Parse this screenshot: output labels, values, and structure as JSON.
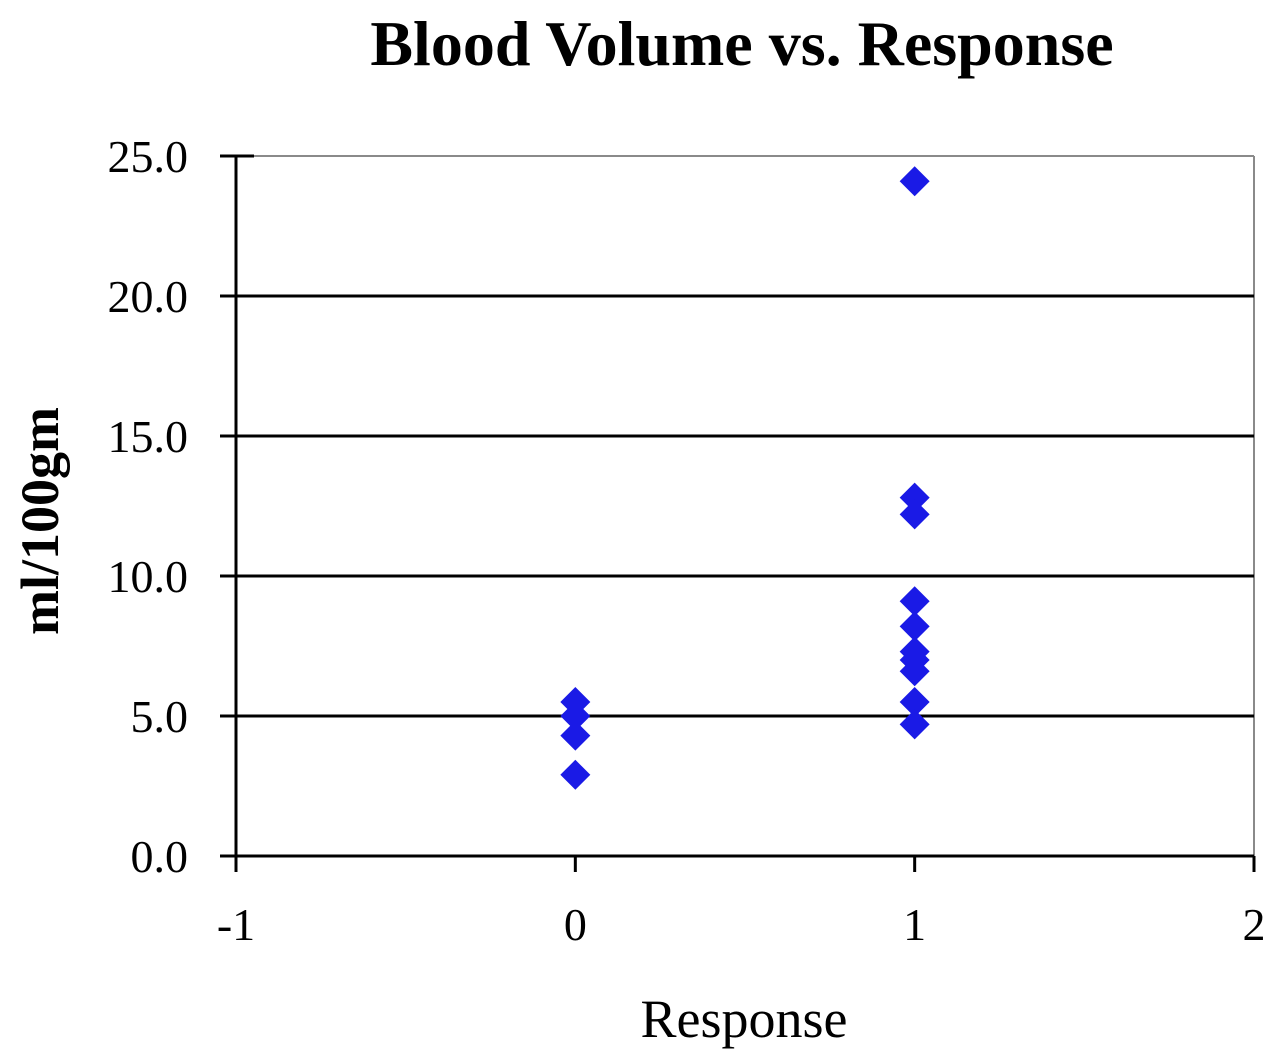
{
  "chart_data": {
    "type": "scatter",
    "title": "Blood Volume vs. Response",
    "xlabel": "Response",
    "ylabel": "ml/100gm",
    "xlim": [
      -1,
      2
    ],
    "ylim": [
      0,
      25
    ],
    "x_ticks": [
      "-1",
      "0",
      "1",
      "2"
    ],
    "y_ticks": [
      "0.0",
      "5.0",
      "10.0",
      "15.0",
      "20.0",
      "25.0"
    ],
    "grid": "horizontal",
    "legend": "none",
    "marker": "diamond",
    "colors": {
      "marker": "#1a1ae6",
      "gridline": "#000000",
      "border": "#8a8a8a"
    },
    "series": [
      {
        "points": [
          {
            "x": 0,
            "y": 5.5
          },
          {
            "x": 0,
            "y": 5.0
          },
          {
            "x": 0,
            "y": 4.3
          },
          {
            "x": 0,
            "y": 2.9
          },
          {
            "x": 1,
            "y": 24.1
          },
          {
            "x": 1,
            "y": 12.8
          },
          {
            "x": 1,
            "y": 12.2
          },
          {
            "x": 1,
            "y": 9.1
          },
          {
            "x": 1,
            "y": 8.2
          },
          {
            "x": 1,
            "y": 7.3
          },
          {
            "x": 1,
            "y": 7.0
          },
          {
            "x": 1,
            "y": 6.6
          },
          {
            "x": 1,
            "y": 5.5
          },
          {
            "x": 1,
            "y": 4.7
          }
        ]
      }
    ]
  }
}
